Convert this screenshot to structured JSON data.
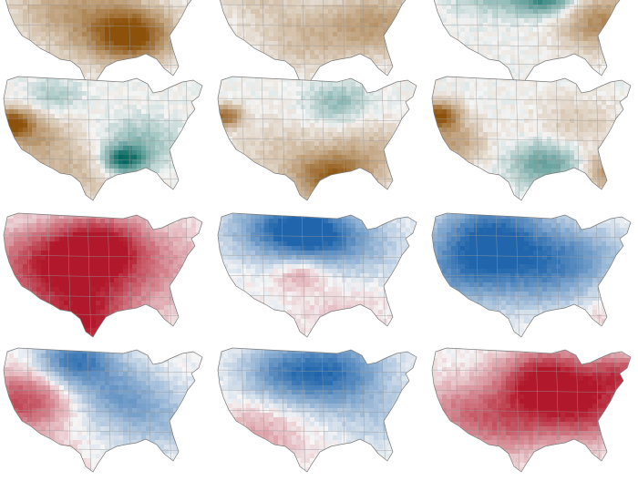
{
  "figure": {
    "rows": 4,
    "cols": 3,
    "palettes": {
      "brown-teal": {
        "neg": "#8c510a",
        "mid": "#f5f5f5",
        "pos": "#01665e"
      },
      "red-blue": {
        "neg": "#b2182b",
        "mid": "#f7f7f7",
        "pos": "#2166ac"
      }
    },
    "panels": [
      {
        "id": "r1c1",
        "palette": "brown-teal",
        "state": "dry south-central, wet north-east",
        "blobs": [
          {
            "u": 0.62,
            "v": 0.55,
            "r": 0.18,
            "val": -0.9
          },
          {
            "u": 0.48,
            "v": 0.45,
            "r": 0.28,
            "val": -0.4
          },
          {
            "u": 0.7,
            "v": 0.1,
            "r": 0.12,
            "val": 0.5
          },
          {
            "u": 0.25,
            "v": 0.3,
            "r": 0.25,
            "val": -0.25
          }
        ]
      },
      {
        "id": "r1c2",
        "palette": "brown-teal",
        "state": "wet pacific north-west, dry south-east",
        "blobs": [
          {
            "u": 0.05,
            "v": 0.05,
            "r": 0.06,
            "val": 1.0
          },
          {
            "u": 0.62,
            "v": 0.1,
            "r": 0.12,
            "val": 0.5
          },
          {
            "u": 0.78,
            "v": 0.45,
            "r": 0.22,
            "val": -0.45
          },
          {
            "u": 0.45,
            "v": 0.55,
            "r": 0.25,
            "val": -0.3
          },
          {
            "u": 0.2,
            "v": 0.25,
            "r": 0.18,
            "val": -0.2
          }
        ]
      },
      {
        "id": "r1c3",
        "palette": "brown-teal",
        "state": "wet ohio valley, dry south-east",
        "blobs": [
          {
            "u": 0.55,
            "v": 0.25,
            "r": 0.14,
            "val": 0.8
          },
          {
            "u": 0.3,
            "v": 0.2,
            "r": 0.18,
            "val": 0.35
          },
          {
            "u": 0.82,
            "v": 0.45,
            "r": 0.2,
            "val": -0.6
          },
          {
            "u": 0.05,
            "v": 0.05,
            "r": 0.06,
            "val": -0.6
          }
        ]
      },
      {
        "id": "r2c1",
        "palette": "brown-teal",
        "state": "dry california, wet tennessee",
        "blobs": [
          {
            "u": 0.04,
            "v": 0.35,
            "r": 0.1,
            "val": -1.0
          },
          {
            "u": 0.15,
            "v": 0.45,
            "r": 0.16,
            "val": -0.4
          },
          {
            "u": 0.58,
            "v": 0.62,
            "r": 0.1,
            "val": 0.9
          },
          {
            "u": 0.65,
            "v": 0.5,
            "r": 0.18,
            "val": 0.35
          },
          {
            "u": 0.35,
            "v": 0.7,
            "r": 0.25,
            "val": -0.3
          },
          {
            "u": 0.25,
            "v": 0.15,
            "r": 0.12,
            "val": 0.25
          }
        ]
      },
      {
        "id": "r2c2",
        "palette": "brown-teal",
        "state": "dry california and gulf coast",
        "blobs": [
          {
            "u": 0.04,
            "v": 0.3,
            "r": 0.08,
            "val": -0.8
          },
          {
            "u": 0.55,
            "v": 0.75,
            "r": 0.18,
            "val": -0.85
          },
          {
            "u": 0.75,
            "v": 0.55,
            "r": 0.2,
            "val": -0.3
          },
          {
            "u": 0.58,
            "v": 0.2,
            "r": 0.14,
            "val": 0.35
          },
          {
            "u": 0.3,
            "v": 0.55,
            "r": 0.22,
            "val": -0.2
          }
        ]
      },
      {
        "id": "r2c3",
        "palette": "brown-teal",
        "state": "dry california, wet lower mississippi",
        "blobs": [
          {
            "u": 0.04,
            "v": 0.3,
            "r": 0.1,
            "val": -1.0
          },
          {
            "u": 0.12,
            "v": 0.5,
            "r": 0.14,
            "val": -0.45
          },
          {
            "u": 0.55,
            "v": 0.65,
            "r": 0.16,
            "val": 0.55
          },
          {
            "u": 0.88,
            "v": 0.7,
            "r": 0.14,
            "val": -0.6
          },
          {
            "u": 0.7,
            "v": 0.35,
            "r": 0.2,
            "val": -0.2
          }
        ]
      },
      {
        "id": "r3c1",
        "palette": "red-blue",
        "state": "warm nation, hottest plains",
        "blobs": [
          {
            "u": 0.45,
            "v": 0.25,
            "r": 0.22,
            "val": -0.95
          },
          {
            "u": 0.35,
            "v": 0.55,
            "r": 0.3,
            "val": -0.75
          },
          {
            "u": 0.15,
            "v": 0.35,
            "r": 0.25,
            "val": -0.45
          },
          {
            "u": 0.75,
            "v": 0.4,
            "r": 0.3,
            "val": -0.3
          },
          {
            "u": 0.4,
            "v": 0.85,
            "r": 0.2,
            "val": -0.7
          }
        ]
      },
      {
        "id": "r3c2",
        "palette": "red-blue",
        "state": "cold northern plains",
        "blobs": [
          {
            "u": 0.45,
            "v": 0.15,
            "r": 0.2,
            "val": 0.95
          },
          {
            "u": 0.25,
            "v": 0.12,
            "r": 0.22,
            "val": 0.55
          },
          {
            "u": 0.68,
            "v": 0.25,
            "r": 0.22,
            "val": 0.35
          },
          {
            "u": 0.4,
            "v": 0.45,
            "r": 0.12,
            "val": -0.35
          },
          {
            "u": 0.6,
            "v": 0.75,
            "r": 0.2,
            "val": -0.15
          }
        ]
      },
      {
        "id": "r3c3",
        "palette": "red-blue",
        "state": "cold north and west",
        "blobs": [
          {
            "u": 0.3,
            "v": 0.18,
            "r": 0.26,
            "val": 0.95
          },
          {
            "u": 0.15,
            "v": 0.45,
            "r": 0.25,
            "val": 0.55
          },
          {
            "u": 0.55,
            "v": 0.45,
            "r": 0.25,
            "val": 0.55
          },
          {
            "u": 0.72,
            "v": 0.3,
            "r": 0.22,
            "val": 0.35
          },
          {
            "u": 0.85,
            "v": 0.75,
            "r": 0.14,
            "val": -0.15
          }
        ]
      },
      {
        "id": "r4c1",
        "palette": "red-blue",
        "state": "warm west, cool north-central",
        "blobs": [
          {
            "u": 0.1,
            "v": 0.4,
            "r": 0.22,
            "val": -0.75
          },
          {
            "u": 0.35,
            "v": 0.1,
            "r": 0.18,
            "val": 0.85
          },
          {
            "u": 0.55,
            "v": 0.35,
            "r": 0.22,
            "val": 0.5
          },
          {
            "u": 0.75,
            "v": 0.55,
            "r": 0.22,
            "val": 0.3
          },
          {
            "u": 0.2,
            "v": 0.85,
            "r": 0.15,
            "val": -0.4
          }
        ]
      },
      {
        "id": "r4c2",
        "palette": "red-blue",
        "state": "cool north band",
        "blobs": [
          {
            "u": 0.55,
            "v": 0.2,
            "r": 0.25,
            "val": 0.85
          },
          {
            "u": 0.3,
            "v": 0.18,
            "r": 0.2,
            "val": 0.45
          },
          {
            "u": 0.2,
            "v": 0.65,
            "r": 0.22,
            "val": -0.3
          },
          {
            "u": 0.8,
            "v": 0.55,
            "r": 0.2,
            "val": 0.2
          }
        ]
      },
      {
        "id": "r4c3",
        "palette": "red-blue",
        "state": "hot midwest and east",
        "blobs": [
          {
            "u": 0.55,
            "v": 0.25,
            "r": 0.22,
            "val": -1.0
          },
          {
            "u": 0.75,
            "v": 0.45,
            "r": 0.25,
            "val": -0.75
          },
          {
            "u": 0.35,
            "v": 0.55,
            "r": 0.25,
            "val": -0.55
          },
          {
            "u": 0.1,
            "v": 0.45,
            "r": 0.2,
            "val": -0.3
          },
          {
            "u": 0.92,
            "v": 0.2,
            "r": 0.15,
            "val": -0.6
          }
        ]
      }
    ]
  }
}
